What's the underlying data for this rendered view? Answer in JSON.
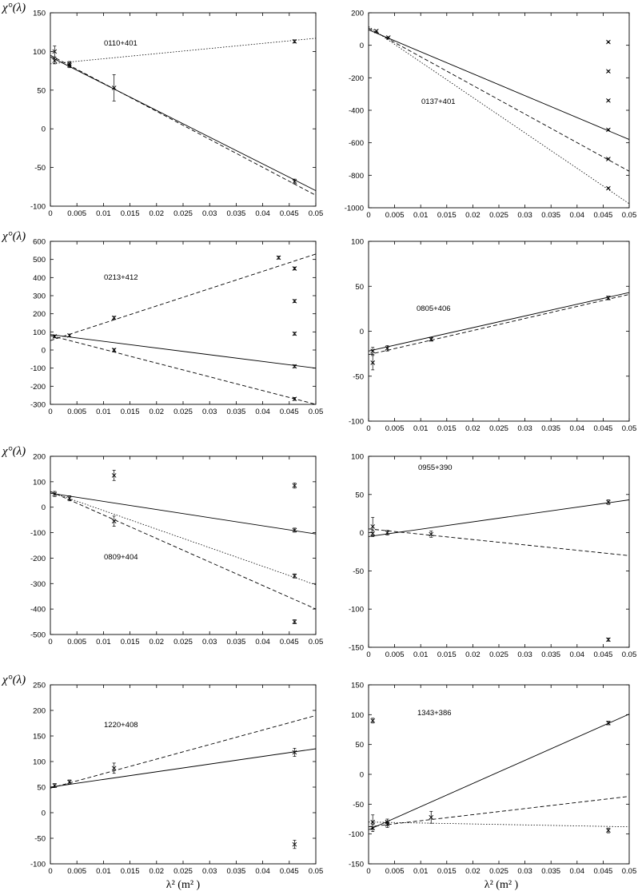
{
  "figure": {
    "y_axis_label": "χ°(λ)",
    "x_axis_label": "λ² (m² )"
  },
  "chart_data": [
    {
      "type": "line",
      "panel_label": "0110+401",
      "xlim": [
        0,
        0.05
      ],
      "ylim": [
        -100,
        150
      ],
      "xticks": [
        0,
        0.005,
        0.01,
        0.015,
        0.02,
        0.025,
        0.03,
        0.035,
        0.04,
        0.045,
        0.05
      ],
      "yticks": [
        -100,
        -50,
        0,
        50,
        100,
        150
      ],
      "grid": false,
      "series": [
        {
          "style": "solid",
          "x": [
            0,
            0.05
          ],
          "y": [
            93,
            -80
          ]
        },
        {
          "style": "dashed",
          "x": [
            0,
            0.05
          ],
          "y": [
            95,
            -86
          ]
        },
        {
          "style": "dotted",
          "x": [
            0,
            0.05
          ],
          "y": [
            84,
            117
          ]
        }
      ],
      "points": [
        {
          "x": 0.0008,
          "y": 100,
          "err": 7
        },
        {
          "x": 0.0008,
          "y": 88,
          "err": 4
        },
        {
          "x": 0.0036,
          "y": 82,
          "err": 3
        },
        {
          "x": 0.0036,
          "y": 84,
          "err": 3
        },
        {
          "x": 0.012,
          "y": 53,
          "err": 17
        },
        {
          "x": 0.046,
          "y": 113,
          "err": 2
        },
        {
          "x": 0.046,
          "y": -68,
          "err": 3
        }
      ]
    },
    {
      "type": "line",
      "panel_label": "0137+401",
      "xlim": [
        0,
        0.05
      ],
      "ylim": [
        -1000,
        200
      ],
      "xticks": [
        0,
        0.005,
        0.01,
        0.015,
        0.02,
        0.025,
        0.03,
        0.035,
        0.04,
        0.045,
        0.05
      ],
      "yticks": [
        -1000,
        -800,
        -600,
        -400,
        -200,
        0,
        200
      ],
      "grid": false,
      "series": [
        {
          "style": "solid",
          "x": [
            0,
            0.05
          ],
          "y": [
            95,
            -580
          ]
        },
        {
          "style": "dashed",
          "x": [
            0,
            0.05
          ],
          "y": [
            105,
            -775
          ]
        },
        {
          "style": "dotted",
          "x": [
            0,
            0.05
          ],
          "y": [
            115,
            -975
          ]
        }
      ],
      "points": [
        {
          "x": 0.0015,
          "y": 88,
          "err": 5
        },
        {
          "x": 0.0038,
          "y": 48,
          "err": 5
        },
        {
          "x": 0.046,
          "y": 20,
          "err": 5
        },
        {
          "x": 0.046,
          "y": -160,
          "err": 5
        },
        {
          "x": 0.046,
          "y": -340,
          "err": 5
        },
        {
          "x": 0.046,
          "y": -520,
          "err": 5
        },
        {
          "x": 0.046,
          "y": -700,
          "err": 5
        },
        {
          "x": 0.046,
          "y": -880,
          "err": 5
        }
      ]
    },
    {
      "type": "line",
      "panel_label": "0213+412",
      "xlim": [
        0,
        0.05
      ],
      "ylim": [
        -300,
        600
      ],
      "xticks": [
        0,
        0.005,
        0.01,
        0.015,
        0.02,
        0.025,
        0.03,
        0.035,
        0.04,
        0.045,
        0.05
      ],
      "yticks": [
        -300,
        -200,
        -100,
        0,
        100,
        200,
        300,
        400,
        500,
        600
      ],
      "grid": false,
      "series": [
        {
          "style": "solid",
          "x": [
            0,
            0.05
          ],
          "y": [
            85,
            -100
          ]
        },
        {
          "style": "dashed",
          "x": [
            0,
            0.05
          ],
          "y": [
            52,
            530
          ]
        },
        {
          "style": "dashed",
          "x": [
            0,
            0.05
          ],
          "y": [
            80,
            -300
          ]
        }
      ],
      "points": [
        {
          "x": 0.0008,
          "y": 75,
          "err": 8
        },
        {
          "x": 0.0036,
          "y": 80,
          "err": 8
        },
        {
          "x": 0.012,
          "y": 178,
          "err": 8
        },
        {
          "x": 0.012,
          "y": 0,
          "err": 8
        },
        {
          "x": 0.043,
          "y": 510,
          "err": 8
        },
        {
          "x": 0.046,
          "y": 450,
          "err": 8
        },
        {
          "x": 0.046,
          "y": 270,
          "err": 8
        },
        {
          "x": 0.046,
          "y": 90,
          "err": 8
        },
        {
          "x": 0.046,
          "y": -90,
          "err": 8
        },
        {
          "x": 0.046,
          "y": -270,
          "err": 8
        }
      ]
    },
    {
      "type": "line",
      "panel_label": "0805+406",
      "xlim": [
        0,
        0.05
      ],
      "ylim": [
        -100,
        100
      ],
      "xticks": [
        0,
        0.005,
        0.01,
        0.015,
        0.02,
        0.025,
        0.03,
        0.035,
        0.04,
        0.045,
        0.05
      ],
      "yticks": [
        -100,
        -50,
        0,
        50,
        100
      ],
      "grid": false,
      "series": [
        {
          "style": "solid",
          "x": [
            0,
            0.05
          ],
          "y": [
            -22,
            43
          ]
        },
        {
          "style": "dashed",
          "x": [
            0,
            0.05
          ],
          "y": [
            -26,
            41
          ]
        }
      ],
      "points": [
        {
          "x": 0.0008,
          "y": -35,
          "err": 8
        },
        {
          "x": 0.0008,
          "y": -22,
          "err": 4
        },
        {
          "x": 0.0036,
          "y": -19,
          "err": 3
        },
        {
          "x": 0.012,
          "y": -9,
          "err": 2
        },
        {
          "x": 0.046,
          "y": 37,
          "err": 2
        }
      ]
    },
    {
      "type": "line",
      "panel_label": "0809+404",
      "xlim": [
        0,
        0.05
      ],
      "ylim": [
        -500,
        200
      ],
      "xticks": [
        0,
        0.005,
        0.01,
        0.015,
        0.02,
        0.025,
        0.03,
        0.035,
        0.04,
        0.045,
        0.05
      ],
      "yticks": [
        -500,
        -400,
        -300,
        -200,
        -100,
        0,
        100,
        200
      ],
      "grid": false,
      "series": [
        {
          "style": "solid",
          "x": [
            0,
            0.05
          ],
          "y": [
            55,
            -105
          ]
        },
        {
          "style": "dotted",
          "x": [
            0,
            0.05
          ],
          "y": [
            60,
            -305
          ]
        },
        {
          "style": "dashed",
          "x": [
            0,
            0.05
          ],
          "y": [
            62,
            -400
          ]
        }
      ],
      "points": [
        {
          "x": 0.0008,
          "y": 52,
          "err": 10
        },
        {
          "x": 0.0036,
          "y": 35,
          "err": 10
        },
        {
          "x": 0.012,
          "y": 125,
          "err": 20
        },
        {
          "x": 0.012,
          "y": -55,
          "err": 20
        },
        {
          "x": 0.046,
          "y": 85,
          "err": 10
        },
        {
          "x": 0.046,
          "y": -90,
          "err": 8
        },
        {
          "x": 0.046,
          "y": -270,
          "err": 8
        },
        {
          "x": 0.046,
          "y": -450,
          "err": 8
        }
      ]
    },
    {
      "type": "line",
      "panel_label": "0955+390",
      "xlim": [
        0,
        0.05
      ],
      "ylim": [
        -150,
        100
      ],
      "xticks": [
        0,
        0.005,
        0.01,
        0.015,
        0.02,
        0.025,
        0.03,
        0.035,
        0.04,
        0.045,
        0.05
      ],
      "yticks": [
        -150,
        -100,
        -50,
        0,
        50,
        100
      ],
      "grid": false,
      "series": [
        {
          "style": "solid",
          "x": [
            0,
            0.05
          ],
          "y": [
            -5,
            43
          ]
        },
        {
          "style": "dashed",
          "x": [
            0,
            0.05
          ],
          "y": [
            5,
            -30
          ]
        }
      ],
      "points": [
        {
          "x": 0.0008,
          "y": 8,
          "err": 12
        },
        {
          "x": 0.0008,
          "y": -1,
          "err": 4
        },
        {
          "x": 0.0036,
          "y": 0,
          "err": 3
        },
        {
          "x": 0.012,
          "y": -2,
          "err": 4
        },
        {
          "x": 0.046,
          "y": 40,
          "err": 3
        },
        {
          "x": 0.046,
          "y": -140,
          "err": 2
        }
      ]
    },
    {
      "type": "line",
      "panel_label": "1220+408",
      "xlim": [
        0,
        0.05
      ],
      "ylim": [
        -100,
        250
      ],
      "xticks": [
        0,
        0.005,
        0.01,
        0.015,
        0.02,
        0.025,
        0.03,
        0.035,
        0.04,
        0.045,
        0.05
      ],
      "yticks": [
        -100,
        -50,
        0,
        50,
        100,
        150,
        200,
        250
      ],
      "grid": false,
      "series": [
        {
          "style": "solid",
          "x": [
            0,
            0.05
          ],
          "y": [
            50,
            125
          ]
        },
        {
          "style": "dashed",
          "x": [
            0,
            0.05
          ],
          "y": [
            48,
            190
          ]
        }
      ],
      "points": [
        {
          "x": 0.0008,
          "y": 53,
          "err": 4
        },
        {
          "x": 0.0036,
          "y": 60,
          "err": 4
        },
        {
          "x": 0.012,
          "y": 87,
          "err": 10
        },
        {
          "x": 0.046,
          "y": 118,
          "err": 8
        },
        {
          "x": 0.046,
          "y": -62,
          "err": 8
        }
      ]
    },
    {
      "type": "line",
      "panel_label": "1343+386",
      "xlim": [
        0,
        0.05
      ],
      "ylim": [
        -150,
        150
      ],
      "xticks": [
        0,
        0.005,
        0.01,
        0.015,
        0.02,
        0.025,
        0.03,
        0.035,
        0.04,
        0.045,
        0.05
      ],
      "yticks": [
        -150,
        -100,
        -50,
        0,
        50,
        100,
        150
      ],
      "grid": false,
      "series": [
        {
          "style": "solid",
          "x": [
            0,
            0.05
          ],
          "y": [
            -93,
            101
          ]
        },
        {
          "style": "dashed",
          "x": [
            0,
            0.05
          ],
          "y": [
            -88,
            -37
          ]
        },
        {
          "style": "dotted",
          "x": [
            0,
            0.05
          ],
          "y": [
            -80,
            -88
          ]
        }
      ],
      "points": [
        {
          "x": 0.0008,
          "y": 90,
          "err": 4
        },
        {
          "x": 0.0008,
          "y": -80,
          "err": 12
        },
        {
          "x": 0.0008,
          "y": -90,
          "err": 6
        },
        {
          "x": 0.0036,
          "y": -80,
          "err": 5
        },
        {
          "x": 0.0036,
          "y": -84,
          "err": 5
        },
        {
          "x": 0.012,
          "y": -72,
          "err": 10
        },
        {
          "x": 0.046,
          "y": 86,
          "err": 3
        },
        {
          "x": 0.046,
          "y": -94,
          "err": 4
        }
      ]
    }
  ]
}
